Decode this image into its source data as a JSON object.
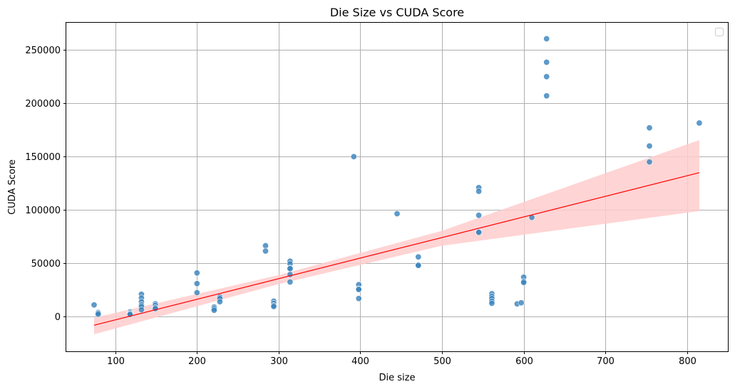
{
  "chart_data": {
    "type": "scatter",
    "title": "Die Size vs CUDA Score",
    "xlabel": "Die size",
    "ylabel": "CUDA Score",
    "xlim": [
      40,
      850
    ],
    "ylim": [
      -33000,
      275000
    ],
    "xticks": [
      100,
      200,
      300,
      400,
      500,
      600,
      700,
      800
    ],
    "yticks": [
      0,
      50000,
      100000,
      150000,
      200000,
      250000
    ],
    "grid": true,
    "legend": "top-right",
    "colors": {
      "points": "#3a84bd",
      "regression": "#ff0000",
      "band": "#ffcccc"
    },
    "points": [
      [
        74,
        10500
      ],
      [
        79,
        3500
      ],
      [
        79,
        2800
      ],
      [
        79,
        1700
      ],
      [
        118,
        4000
      ],
      [
        118,
        3000
      ],
      [
        118,
        2300
      ],
      [
        118,
        1600
      ],
      [
        132,
        20500
      ],
      [
        132,
        17000
      ],
      [
        132,
        13500
      ],
      [
        132,
        10500
      ],
      [
        132,
        9000
      ],
      [
        132,
        6000
      ],
      [
        149,
        11500
      ],
      [
        149,
        10000
      ],
      [
        149,
        8000
      ],
      [
        149,
        7000
      ],
      [
        200,
        40500
      ],
      [
        200,
        30500
      ],
      [
        200,
        22000
      ],
      [
        221,
        8500
      ],
      [
        221,
        7000
      ],
      [
        221,
        5500
      ],
      [
        228,
        18000
      ],
      [
        228,
        16500
      ],
      [
        228,
        13500
      ],
      [
        284,
        66000
      ],
      [
        284,
        61000
      ],
      [
        294,
        14000
      ],
      [
        294,
        12000
      ],
      [
        294,
        10000
      ],
      [
        294,
        9000
      ],
      [
        314,
        51500
      ],
      [
        314,
        49000
      ],
      [
        314,
        45000
      ],
      [
        314,
        44500
      ],
      [
        314,
        39000
      ],
      [
        314,
        32000
      ],
      [
        392,
        149500
      ],
      [
        398,
        29500
      ],
      [
        398,
        25500
      ],
      [
        398,
        25000
      ],
      [
        398,
        16500
      ],
      [
        445,
        96000
      ],
      [
        471,
        55500
      ],
      [
        471,
        48000
      ],
      [
        471,
        47500
      ],
      [
        545,
        120500
      ],
      [
        545,
        117000
      ],
      [
        545,
        94500
      ],
      [
        545,
        79000
      ],
      [
        545,
        78500
      ],
      [
        561,
        21000
      ],
      [
        561,
        18500
      ],
      [
        561,
        16500
      ],
      [
        561,
        14000
      ],
      [
        561,
        12000
      ],
      [
        592,
        11500
      ],
      [
        597,
        12500
      ],
      [
        600,
        36500
      ],
      [
        600,
        32500
      ],
      [
        600,
        31500
      ],
      [
        610,
        92500
      ],
      [
        628,
        260000
      ],
      [
        628,
        238000
      ],
      [
        628,
        224500
      ],
      [
        628,
        206500
      ],
      [
        754,
        176500
      ],
      [
        754,
        159500
      ],
      [
        754,
        144500
      ],
      [
        815,
        181000
      ]
    ],
    "regression": {
      "x_range": [
        74,
        815
      ],
      "line": [
        [
          74,
          -8500
        ],
        [
          815,
          134500
        ]
      ],
      "ci_lower": [
        [
          74,
          -17000
        ],
        [
          300,
          30000
        ],
        [
          500,
          66000
        ],
        [
          815,
          98500
        ]
      ],
      "ci_upper": [
        [
          74,
          -1500
        ],
        [
          300,
          38500
        ],
        [
          500,
          80000
        ],
        [
          815,
          165000
        ]
      ]
    }
  }
}
